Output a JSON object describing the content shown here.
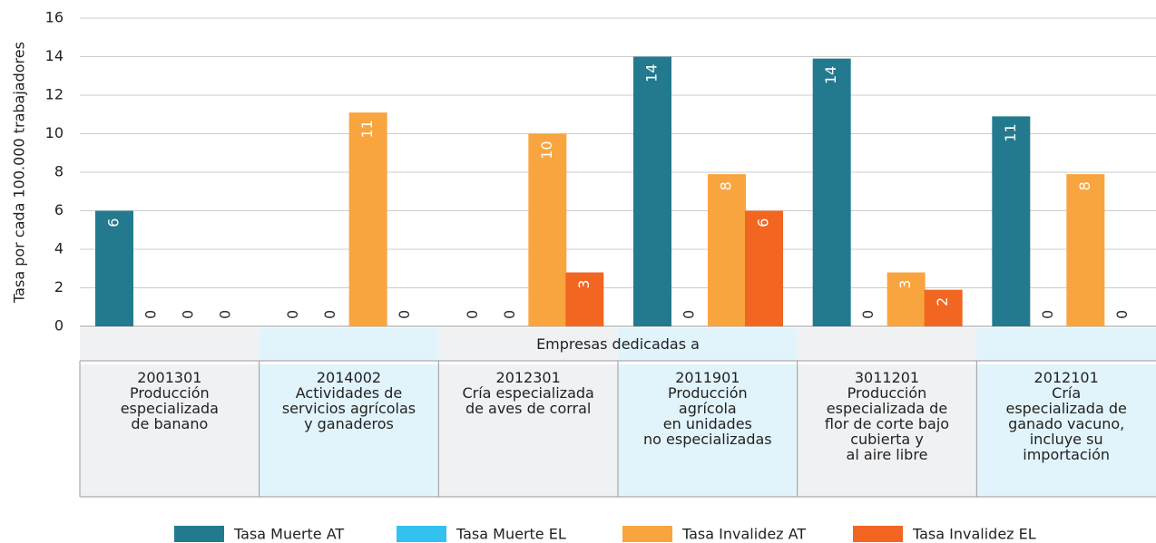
{
  "chart_data": {
    "type": "bar",
    "y_label": "Tasa por cada 100.000 trabajadores",
    "group_title": "Empresas dedicadas a",
    "categories": [
      "2001301\nProducción\nespecializada\nde banano",
      "2014002\nActividades de\nservicios agrícolas\ny ganaderos",
      "2012301\nCría especializada\nde aves de corral",
      "2011901\nProducción\nagrícola\nen unidades\nno especializadas",
      "3011201\nProducción\nespecializada de\nflor de corte bajo\ncubierta y\nal aire libre",
      "2012101\nCría\nespecializada de\nganado vacuno,\nincluye su\nimportación"
    ],
    "series": [
      {
        "name": "Tasa Muerte AT",
        "color": "#237a8e",
        "values": [
          6,
          0,
          0,
          14,
          13.9,
          10.9
        ],
        "value_labels": [
          "6",
          "0",
          "0",
          "14",
          "14",
          "11"
        ]
      },
      {
        "name": "Tasa Muerte EL",
        "color": "#33c2ef",
        "values": [
          0,
          0,
          0,
          0,
          0,
          0
        ],
        "value_labels": [
          "0",
          "0",
          "0",
          "0",
          "0",
          "0"
        ]
      },
      {
        "name": "Tasa Invalidez AT",
        "color": "#f9a53f",
        "values": [
          0,
          11.1,
          10,
          7.9,
          2.8,
          7.9
        ],
        "value_labels": [
          "0",
          "11",
          "10",
          "8",
          "3",
          "8"
        ]
      },
      {
        "name": "Tasa Invalidez EL",
        "color": "#f26622",
        "values": [
          0,
          0,
          2.8,
          6,
          1.9,
          0
        ],
        "value_labels": [
          "0",
          "0",
          "3",
          "6",
          "2",
          "0"
        ]
      }
    ],
    "ylim": [
      0,
      16
    ],
    "yticks": [
      0,
      2,
      4,
      6,
      8,
      10,
      12,
      14,
      16
    ],
    "grid": true
  }
}
